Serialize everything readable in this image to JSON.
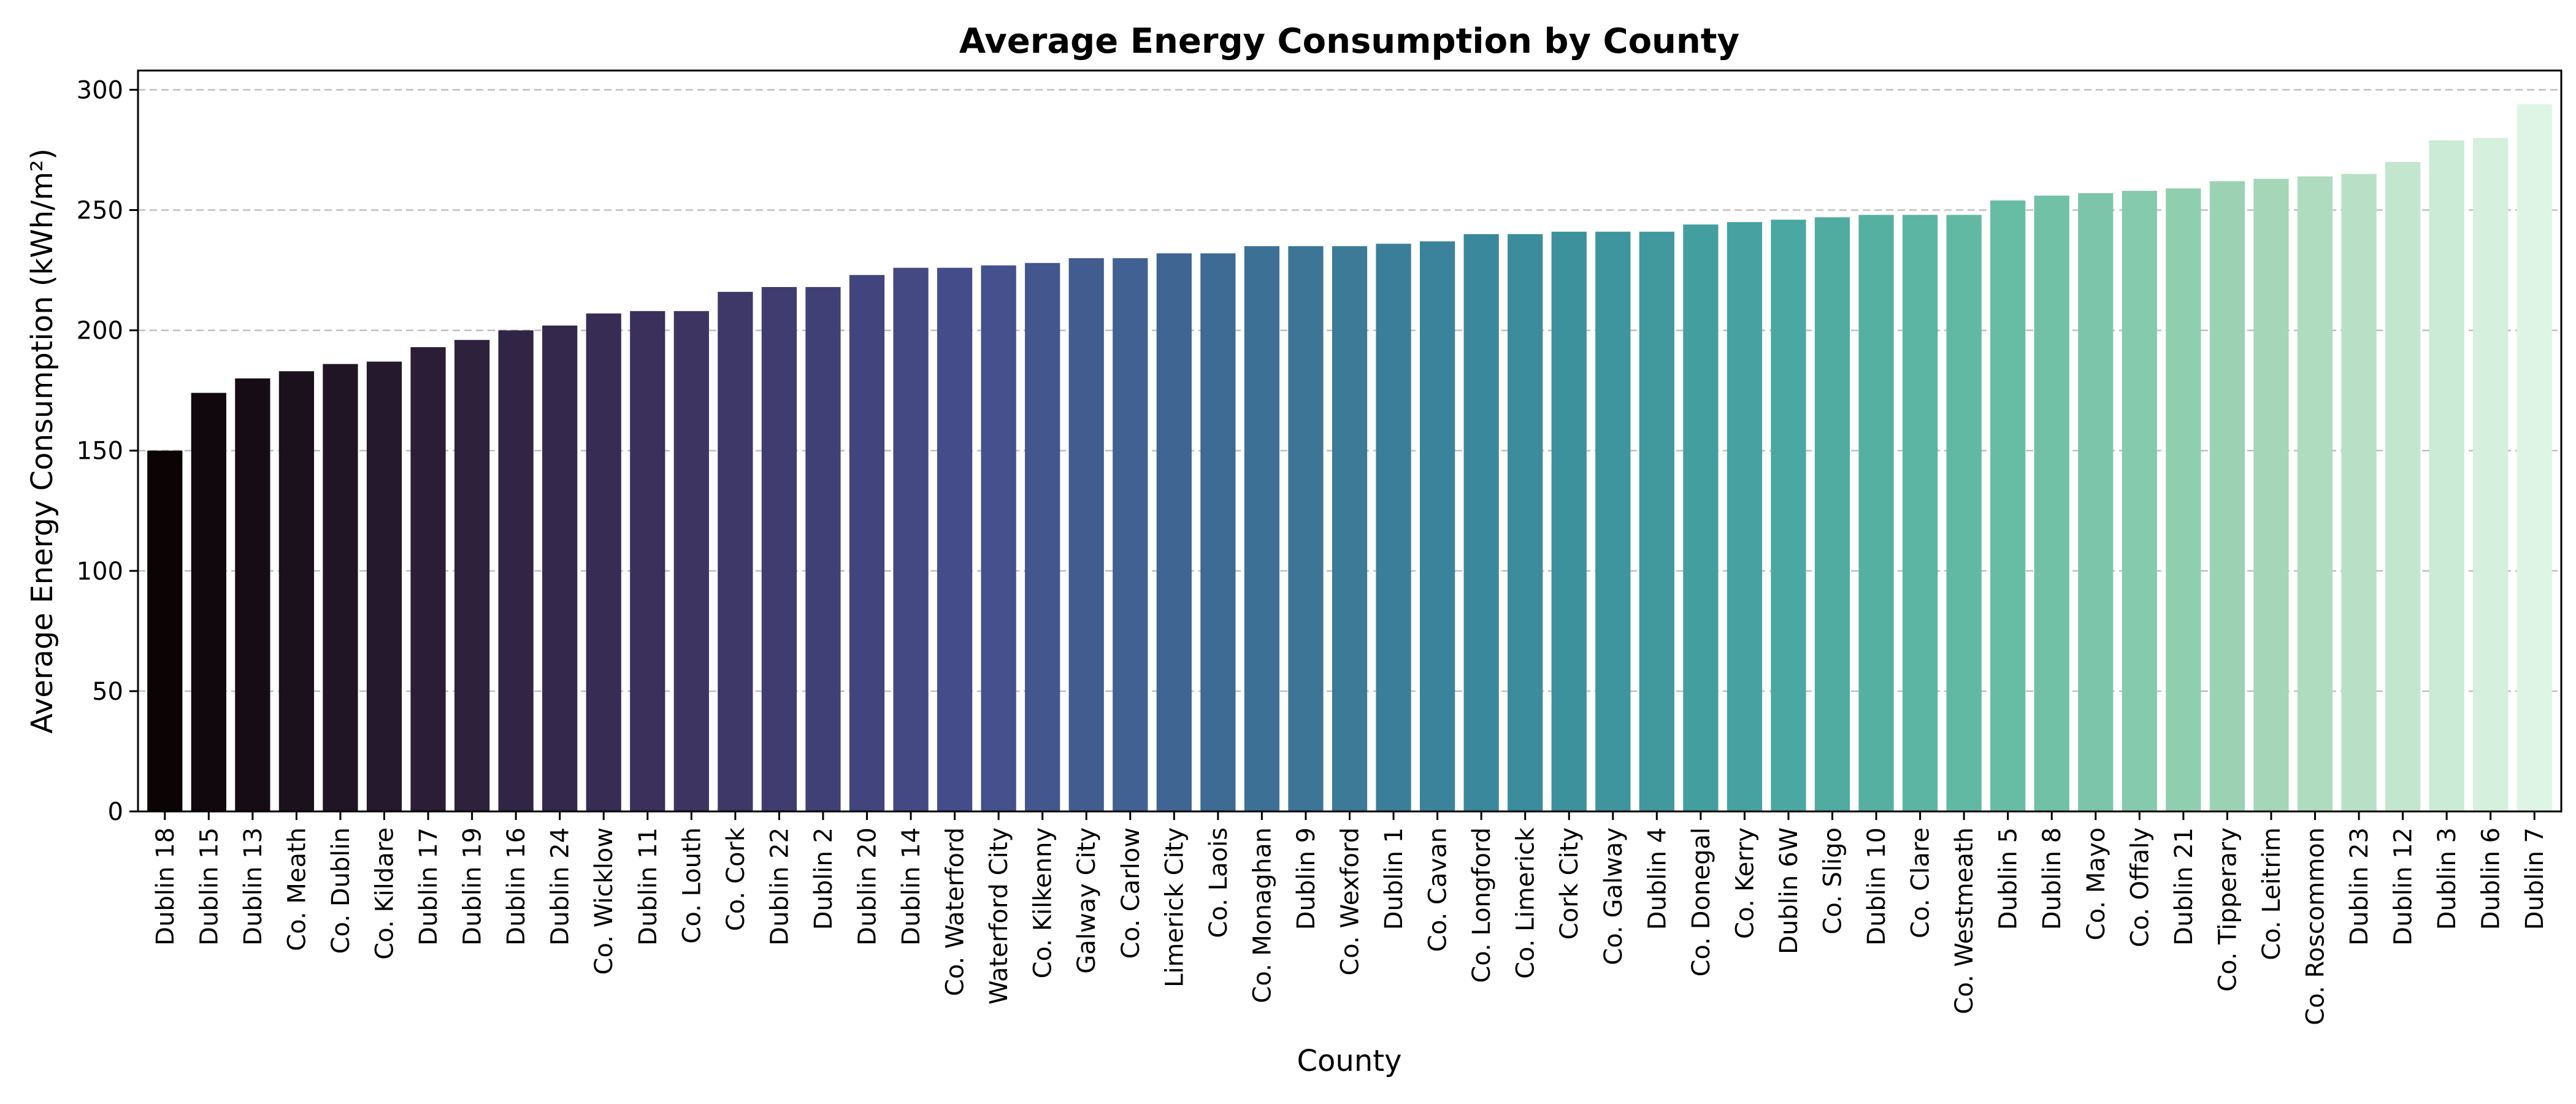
{
  "chart_data": {
    "type": "bar",
    "title": "Average Energy Consumption by County",
    "xlabel": "County",
    "ylabel": "Average Energy Consumption (kWh/m²)",
    "ylim": [
      0,
      308
    ],
    "yticks": [
      0,
      50,
      100,
      150,
      200,
      250,
      300
    ],
    "grid": "y-dashed",
    "categories": [
      "Dublin 18",
      "Dublin 15",
      "Dublin 13",
      "Co. Meath",
      "Co. Dublin",
      "Co. Kildare",
      "Dublin 17",
      "Dublin 19",
      "Dublin 16",
      "Dublin 24",
      "Co. Wicklow",
      "Dublin 11",
      "Co. Louth",
      "Co. Cork",
      "Dublin 22",
      "Dublin 2",
      "Dublin 20",
      "Dublin 14",
      "Co. Waterford",
      "Waterford City",
      "Co. Kilkenny",
      "Galway City",
      "Co. Carlow",
      "Limerick City",
      "Co. Laois",
      "Co. Monaghan",
      "Dublin 9",
      "Co. Wexford",
      "Dublin 1",
      "Co. Cavan",
      "Co. Longford",
      "Co. Limerick",
      "Cork City",
      "Co. Galway",
      "Dublin 4",
      "Co. Donegal",
      "Co. Kerry",
      "Dublin 6W",
      "Co. Sligo",
      "Dublin 10",
      "Co. Clare",
      "Co. Westmeath",
      "Dublin 5",
      "Dublin 8",
      "Co. Mayo",
      "Co. Offaly",
      "Dublin 21",
      "Co. Tipperary",
      "Co. Leitrim",
      "Co. Roscommon",
      "Dublin 23",
      "Dublin 12",
      "Dublin 3",
      "Dublin 6",
      "Dublin 7"
    ],
    "values": [
      150,
      174,
      180,
      183,
      186,
      187,
      193,
      196,
      200,
      202,
      207,
      208,
      208,
      216,
      218,
      218,
      223,
      226,
      226,
      227,
      228,
      230,
      230,
      232,
      232,
      235,
      235,
      235,
      236,
      237,
      240,
      240,
      241,
      241,
      241,
      244,
      245,
      246,
      247,
      248,
      248,
      248,
      254,
      256,
      257,
      258,
      259,
      262,
      263,
      264,
      265,
      270,
      279,
      280,
      294
    ],
    "palette": [
      "#0b0405",
      "#2a1d35",
      "#3d3462",
      "#454c8a",
      "#3e6b94",
      "#39889b",
      "#45a2a0",
      "#67bda3",
      "#a5d6b7",
      "#def5e5"
    ]
  }
}
